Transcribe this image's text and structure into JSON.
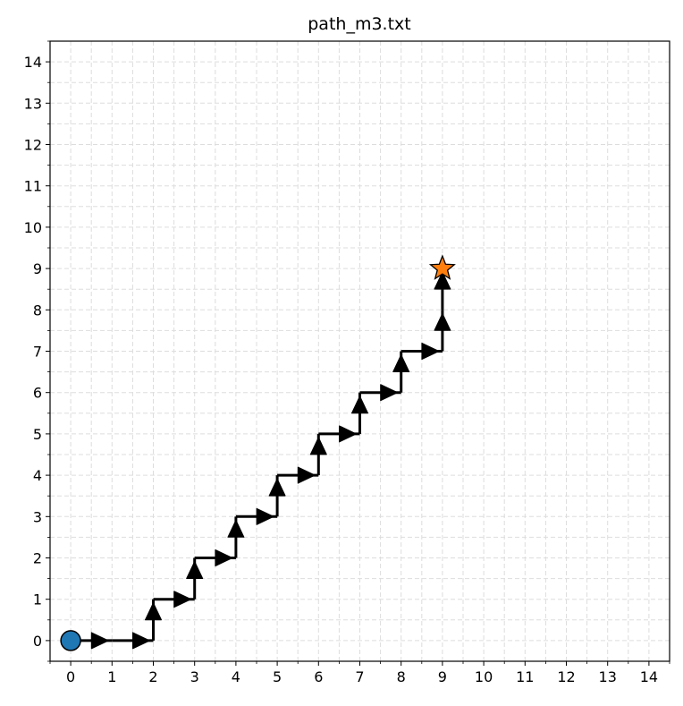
{
  "chart_data": {
    "type": "line",
    "title": "path_m3.txt",
    "xlabel": "",
    "ylabel": "",
    "xlim": [
      -0.5,
      14.5
    ],
    "ylim": [
      -0.5,
      14.5
    ],
    "xticks": [
      0,
      1,
      2,
      3,
      4,
      5,
      6,
      7,
      8,
      9,
      10,
      11,
      12,
      13,
      14
    ],
    "yticks": [
      0,
      1,
      2,
      3,
      4,
      5,
      6,
      7,
      8,
      9,
      10,
      11,
      12,
      13,
      14
    ],
    "grid": true,
    "path": [
      [
        0,
        0
      ],
      [
        1,
        0
      ],
      [
        2,
        0
      ],
      [
        2,
        1
      ],
      [
        3,
        1
      ],
      [
        3,
        2
      ],
      [
        4,
        2
      ],
      [
        4,
        3
      ],
      [
        5,
        3
      ],
      [
        5,
        4
      ],
      [
        6,
        4
      ],
      [
        6,
        5
      ],
      [
        7,
        5
      ],
      [
        7,
        6
      ],
      [
        8,
        6
      ],
      [
        8,
        7
      ],
      [
        9,
        7
      ],
      [
        9,
        8
      ],
      [
        9,
        9
      ]
    ],
    "start": {
      "x": 0,
      "y": 0,
      "marker": "circle",
      "color": "#1f77b4"
    },
    "goal": {
      "x": 9,
      "y": 9,
      "marker": "star",
      "color": "#ff7f0e"
    },
    "arrow_color": "#000000"
  }
}
